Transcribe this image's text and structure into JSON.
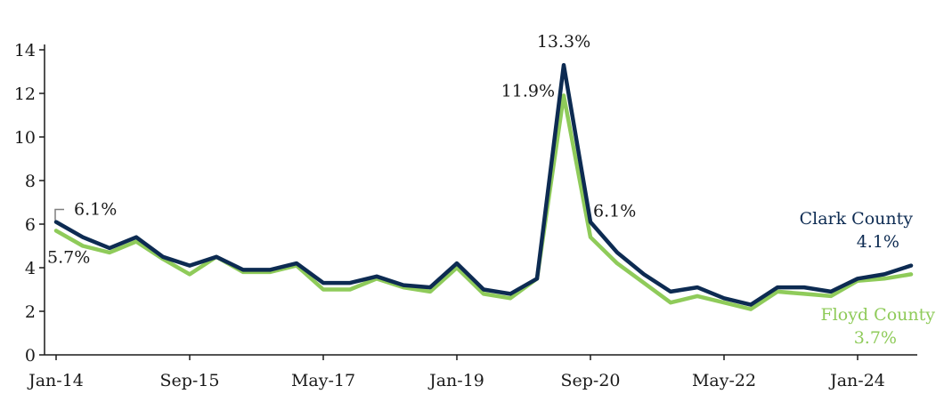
{
  "chart_data": {
    "type": "line",
    "title": "",
    "xlabel": "",
    "ylabel": "",
    "ylim": [
      0,
      14
    ],
    "yticks": [
      "0",
      "2",
      "4",
      "6",
      "8",
      "10",
      "12",
      "14"
    ],
    "xtick_labels": [
      "Jan-14",
      "Sep-15",
      "May-17",
      "Jan-19",
      "Sep-20",
      "May-22",
      "Jan-24"
    ],
    "x_months_per_step": 4,
    "x": [
      "Jan-14",
      "May-14",
      "Sep-14",
      "Jan-15",
      "May-15",
      "Sep-15",
      "Jan-16",
      "May-16",
      "Sep-16",
      "Jan-17",
      "May-17",
      "Sep-17",
      "Jan-18",
      "May-18",
      "Sep-18",
      "Jan-19",
      "May-19",
      "Sep-19",
      "Jan-20",
      "May-20",
      "Sep-20",
      "Jan-21",
      "May-21",
      "Sep-21",
      "Jan-22",
      "May-22",
      "Sep-22",
      "Jan-23",
      "May-23",
      "Sep-23",
      "Jan-24",
      "May-24",
      "Sep-24"
    ],
    "grid": false,
    "legend": "inline-right",
    "series": [
      {
        "name": "Clark County",
        "color": "#0d2b52",
        "values": [
          6.1,
          5.4,
          4.9,
          5.4,
          4.5,
          4.1,
          4.5,
          3.9,
          3.9,
          4.2,
          3.3,
          3.3,
          3.6,
          3.2,
          3.1,
          4.2,
          3.0,
          2.8,
          3.5,
          13.3,
          6.1,
          4.7,
          3.7,
          2.9,
          3.1,
          2.6,
          2.3,
          3.1,
          3.1,
          2.9,
          3.5,
          3.7,
          4.1
        ],
        "end_label": "4.1%"
      },
      {
        "name": "Floyd County",
        "color": "#8fcb5a",
        "values": [
          5.7,
          5.0,
          4.7,
          5.2,
          4.4,
          3.7,
          4.5,
          3.8,
          3.8,
          4.1,
          3.0,
          3.0,
          3.5,
          3.1,
          2.9,
          4.0,
          2.8,
          2.6,
          3.5,
          11.9,
          5.4,
          4.2,
          3.3,
          2.4,
          2.7,
          2.4,
          2.1,
          2.9,
          2.8,
          2.7,
          3.4,
          3.5,
          3.7
        ],
        "end_label": "3.7%"
      }
    ],
    "annotations": [
      {
        "text": "6.1%",
        "series": 0,
        "index": 0
      },
      {
        "text": "5.7%",
        "series": 1,
        "index": 0
      },
      {
        "text": "13.3%",
        "series": 0,
        "index": 19
      },
      {
        "text": "11.9%",
        "series": 1,
        "index": 19
      },
      {
        "text": "6.1%",
        "series": 0,
        "index": 20
      }
    ]
  }
}
